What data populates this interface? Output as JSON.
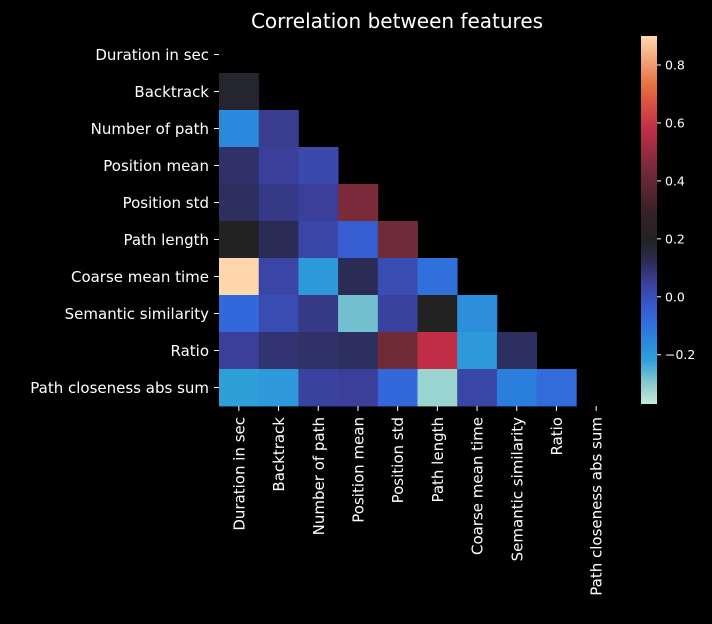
{
  "chart_data": {
    "type": "heatmap",
    "title": "Correlation between features",
    "xlabel": "",
    "ylabel": "",
    "rows": [
      "Duration in sec",
      "Backtrack",
      "Number of path",
      "Position mean",
      "Position std",
      "Path length",
      "Coarse mean time",
      "Semantic similarity",
      "Ratio",
      "Path closeness abs sum"
    ],
    "columns": [
      "Duration in sec",
      "Backtrack",
      "Number of path",
      "Position mean",
      "Position std",
      "Path length",
      "Coarse mean time",
      "Semantic similarity",
      "Ratio",
      "Path closeness abs sum"
    ],
    "mask": "upper triangle and diagonal hidden",
    "values": [
      [
        null,
        null,
        null,
        null,
        null,
        null,
        null,
        null,
        null,
        null
      ],
      [
        0.18,
        null,
        null,
        null,
        null,
        null,
        null,
        null,
        null,
        null
      ],
      [
        -0.16,
        0.06,
        null,
        null,
        null,
        null,
        null,
        null,
        null,
        null
      ],
      [
        0.1,
        0.05,
        0.02,
        null,
        null,
        null,
        null,
        null,
        null,
        null
      ],
      [
        0.11,
        0.07,
        0.05,
        0.45,
        null,
        null,
        null,
        null,
        null,
        null
      ],
      [
        0.2,
        0.12,
        0.03,
        -0.04,
        0.43,
        null,
        null,
        null,
        null,
        null
      ],
      [
        0.9,
        0.03,
        -0.2,
        0.12,
        0.01,
        -0.09,
        null,
        null,
        null,
        null
      ],
      [
        -0.07,
        0.01,
        0.07,
        -0.28,
        0.04,
        0.2,
        -0.17,
        null,
        null,
        null
      ],
      [
        0.05,
        0.09,
        0.1,
        0.11,
        0.43,
        0.58,
        -0.2,
        0.11,
        null,
        null
      ],
      [
        -0.22,
        -0.2,
        0.04,
        0.05,
        -0.07,
        -0.32,
        0.03,
        -0.13,
        -0.08,
        null
      ]
    ],
    "colorbar": {
      "min": -0.37,
      "max": 0.9,
      "ticks": [
        0.8,
        0.6,
        0.4,
        0.2,
        0.0,
        -0.2
      ],
      "tick_labels": [
        "0.8",
        "0.6",
        "0.4",
        "0.2",
        "0.0",
        "−0.2"
      ]
    },
    "colormap": {
      "stops": [
        [
          -0.37,
          "#c3eadb"
        ],
        [
          -0.3,
          "#8acbcd"
        ],
        [
          -0.22,
          "#2ea0d9"
        ],
        [
          -0.13,
          "#2a7fdc"
        ],
        [
          -0.05,
          "#3560d8"
        ],
        [
          0.05,
          "#3b3f99"
        ],
        [
          0.12,
          "#2b2c55"
        ],
        [
          0.2,
          "#222222"
        ],
        [
          0.3,
          "#3b2028"
        ],
        [
          0.43,
          "#702a38"
        ],
        [
          0.58,
          "#c22d48"
        ],
        [
          0.72,
          "#e66a3e"
        ],
        [
          0.9,
          "#ffd8ae"
        ]
      ]
    },
    "background": "#000000",
    "text_color": "#ffffff"
  }
}
